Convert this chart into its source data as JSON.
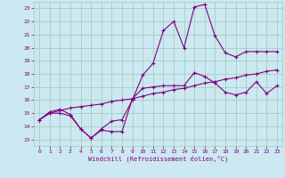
{
  "xlabel": "Windchill (Refroidissement éolien,°C)",
  "bg_color": "#cce8f0",
  "line_color": "#800080",
  "grid_color": "#99ccbb",
  "xlim": [
    -0.5,
    23.5
  ],
  "ylim": [
    12.5,
    23.5
  ],
  "xticks": [
    0,
    1,
    2,
    3,
    4,
    5,
    6,
    7,
    8,
    9,
    10,
    11,
    12,
    13,
    14,
    15,
    16,
    17,
    18,
    19,
    20,
    21,
    22,
    23
  ],
  "yticks": [
    13,
    14,
    15,
    16,
    17,
    18,
    19,
    20,
    21,
    22,
    23
  ],
  "line1_x": [
    0,
    1,
    2,
    3,
    4,
    5,
    6,
    7,
    8,
    9,
    10,
    11,
    12,
    13,
    14,
    15,
    16,
    17,
    18,
    19,
    20,
    21,
    22,
    23
  ],
  "line1_y": [
    14.5,
    15.0,
    15.0,
    14.8,
    13.8,
    13.1,
    13.7,
    13.6,
    13.6,
    16.1,
    16.9,
    17.0,
    17.1,
    17.1,
    17.1,
    18.1,
    17.8,
    17.3,
    16.6,
    16.4,
    16.6,
    17.4,
    16.5,
    17.1
  ],
  "line2_x": [
    0,
    1,
    2,
    3,
    4,
    5,
    6,
    7,
    8,
    9,
    10,
    11,
    12,
    13,
    14,
    15,
    16,
    17,
    18,
    19,
    20,
    21,
    22,
    23
  ],
  "line2_y": [
    14.5,
    15.0,
    15.2,
    15.4,
    15.5,
    15.6,
    15.7,
    15.9,
    16.0,
    16.1,
    16.3,
    16.5,
    16.6,
    16.8,
    16.9,
    17.1,
    17.3,
    17.4,
    17.6,
    17.7,
    17.9,
    18.0,
    18.2,
    18.3
  ],
  "line3_x": [
    0,
    1,
    2,
    3,
    4,
    5,
    6,
    7,
    8,
    9,
    10,
    11,
    12,
    13,
    14,
    15,
    16,
    17,
    18,
    19,
    20,
    21,
    22,
    23
  ],
  "line3_y": [
    14.5,
    15.1,
    15.3,
    14.9,
    13.8,
    13.1,
    13.8,
    14.4,
    14.5,
    16.0,
    17.9,
    18.8,
    21.3,
    22.0,
    20.0,
    23.1,
    23.3,
    20.9,
    19.6,
    19.3,
    19.7,
    19.7,
    19.7,
    19.7
  ]
}
